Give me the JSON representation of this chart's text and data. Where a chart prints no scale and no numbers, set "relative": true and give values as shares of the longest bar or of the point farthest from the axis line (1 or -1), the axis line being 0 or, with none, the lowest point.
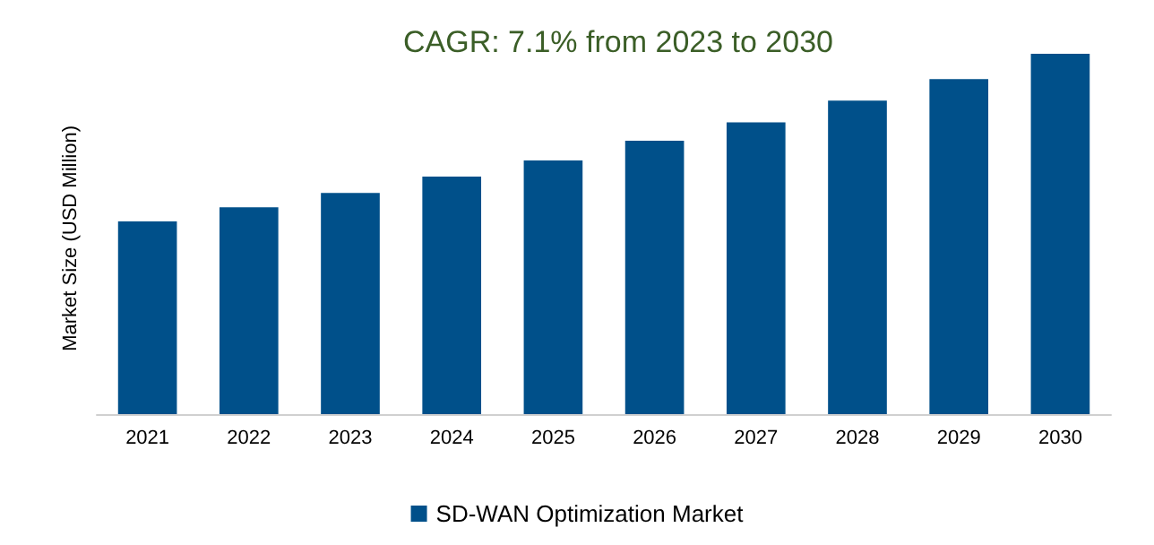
{
  "chart_data": {
    "type": "bar",
    "title": "CAGR: 7.1% from 2023 to 2030",
    "ylabel": "Market Size (USD Million)",
    "relative": true,
    "categories": [
      "2021",
      "2022",
      "2023",
      "2024",
      "2025",
      "2026",
      "2027",
      "2028",
      "2029",
      "2030"
    ],
    "series": [
      {
        "name": "SD-WAN Optimization Market",
        "color": "#00508a",
        "values": [
          0.535,
          0.574,
          0.614,
          0.659,
          0.704,
          0.759,
          0.81,
          0.87,
          0.93,
          1
        ]
      }
    ],
    "legend": "bottom"
  }
}
